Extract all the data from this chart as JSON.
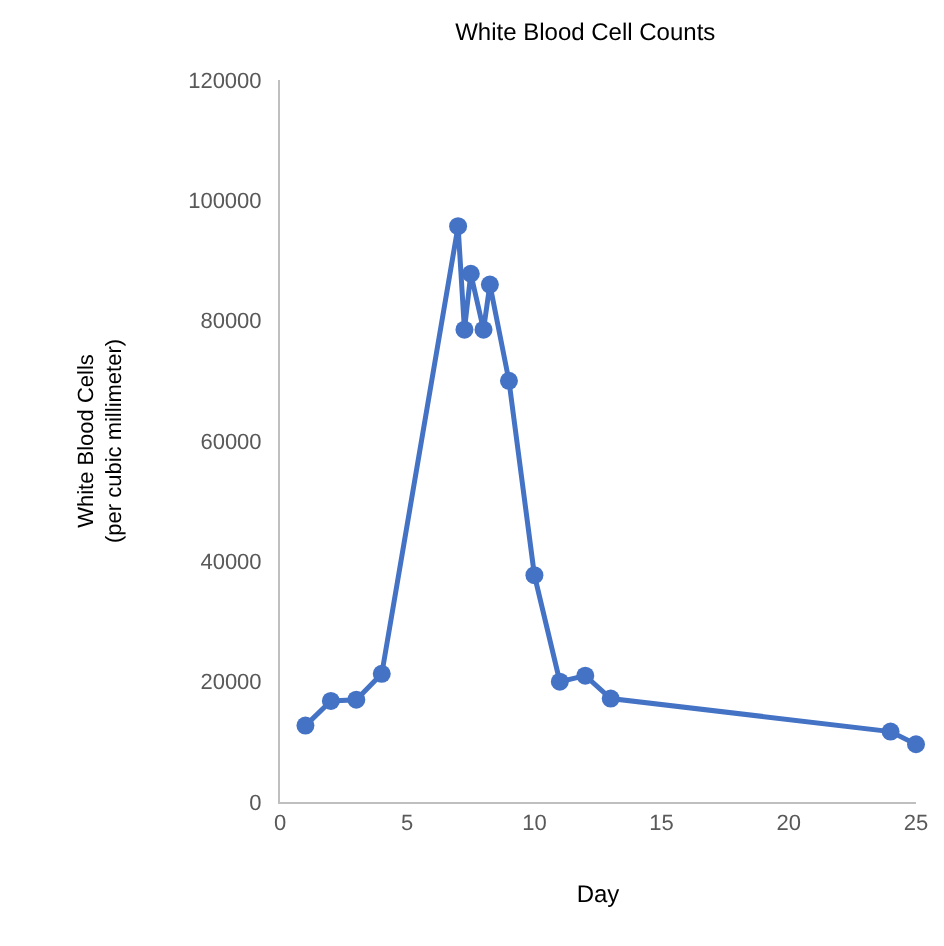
{
  "chart_data": {
    "type": "line",
    "title": "White Blood Cell Counts",
    "xlabel": "Day",
    "ylabel": "White Blood Cells\n(per cubic millimeter)",
    "x": [
      1,
      2,
      3,
      4,
      7,
      7.25,
      7.5,
      8,
      8.25,
      9,
      10,
      11,
      12,
      13,
      24,
      25
    ],
    "series": [
      {
        "color": "#4472c4",
        "values": [
          12700,
          16800,
          17000,
          21300,
          95700,
          78500,
          87800,
          78500,
          86000,
          70000,
          37700,
          20000,
          21000,
          17200,
          11700,
          9600
        ]
      }
    ],
    "xlim": [
      0,
      25
    ],
    "xticks": [
      0,
      5,
      10,
      15,
      20,
      25
    ],
    "ylim": [
      0,
      120000
    ],
    "yticks": [
      0,
      20000,
      40000,
      60000,
      80000,
      100000,
      120000
    ],
    "grid": false,
    "marker": "circle",
    "line_style": "solid"
  }
}
